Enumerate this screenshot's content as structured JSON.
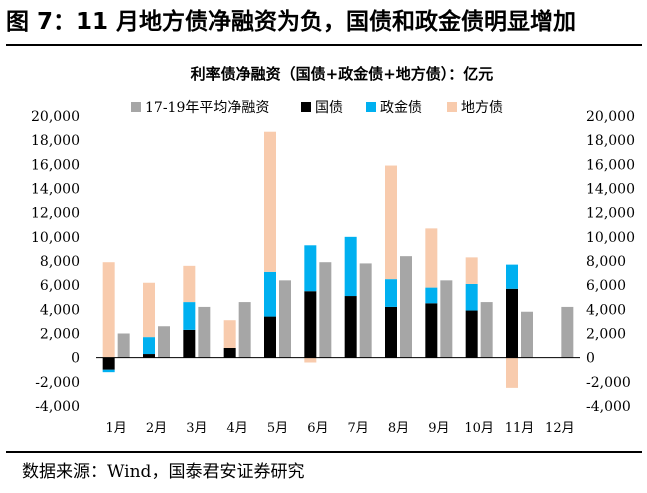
{
  "figure": {
    "title": "图 7：11 月地方债净融资为负，国债和政金债明显增加",
    "source": "数据来源：Wind，国泰君安证券研究"
  },
  "colors": {
    "baseline": "#A6A6A6",
    "govt": "#000000",
    "policy": "#00B0F0",
    "local": "#F8CBAD",
    "axis": "#000000"
  },
  "chart_data": {
    "type": "bar",
    "title": "利率债净融资（国债+政金债+地方债）：亿元",
    "categories": [
      "1月",
      "2月",
      "3月",
      "4月",
      "5月",
      "6月",
      "7月",
      "8月",
      "9月",
      "10月",
      "11月",
      "12月"
    ],
    "ylim": [
      -4000,
      20000
    ],
    "yticks": [
      "-4,000",
      "-2,000",
      "0",
      "2,000",
      "4,000",
      "6,000",
      "8,000",
      "10,000",
      "12,000",
      "14,000",
      "16,000",
      "18,000",
      "20,000"
    ],
    "ytick_values": [
      -4000,
      -2000,
      0,
      2000,
      4000,
      6000,
      8000,
      10000,
      12000,
      14000,
      16000,
      18000,
      20000
    ],
    "stack_series": [
      {
        "name": "国债",
        "key": "govt",
        "values": [
          -1000,
          300,
          2300,
          800,
          3400,
          5500,
          5100,
          4200,
          4500,
          3900,
          5700,
          null
        ]
      },
      {
        "name": "政金债",
        "key": "policy",
        "values": [
          -200,
          1400,
          2300,
          0,
          3700,
          3800,
          4900,
          2300,
          1300,
          2200,
          2000,
          null
        ]
      },
      {
        "name": "地方债",
        "key": "local",
        "values": [
          7900,
          4500,
          3000,
          2300,
          11600,
          -400,
          0,
          9400,
          4900,
          2200,
          -2500,
          null
        ]
      }
    ],
    "baseline_series": {
      "name": "17-19年平均净融资",
      "key": "baseline",
      "values": [
        2000,
        2600,
        4200,
        4600,
        6400,
        7900,
        7800,
        8400,
        6400,
        4600,
        3800,
        4200
      ]
    },
    "legend": [
      "17-19年平均净融资",
      "国债",
      "政金债",
      "地方债"
    ]
  }
}
